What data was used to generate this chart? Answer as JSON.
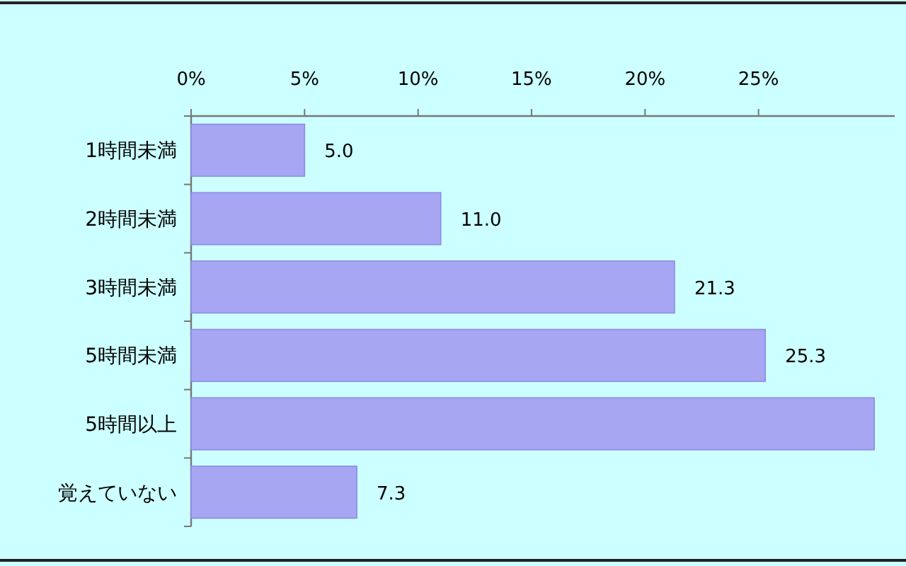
{
  "chart_data": {
    "type": "bar",
    "orientation": "horizontal",
    "categories": [
      "1時間未満",
      "2時間未満",
      "3時間未満",
      "5時間未満",
      "5時間以上",
      "覚えていない"
    ],
    "values": [
      5.0,
      11.0,
      21.3,
      25.3,
      30.1,
      7.3
    ],
    "value_labels": [
      "5.0",
      "11.0",
      "21.3",
      "25.3",
      null,
      "7.3"
    ],
    "color": "#a6a6f2",
    "xlim": [
      0,
      31
    ],
    "xticks": [
      {
        "value": 0,
        "label": "0%"
      },
      {
        "value": 5,
        "label": "5%"
      },
      {
        "value": 10,
        "label": "10%"
      },
      {
        "value": 15,
        "label": "15%"
      },
      {
        "value": 20,
        "label": "20%"
      },
      {
        "value": 25,
        "label": "25%"
      }
    ],
    "data_labels": false
  }
}
